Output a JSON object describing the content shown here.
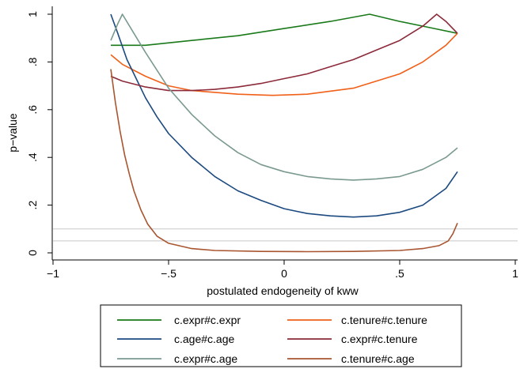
{
  "chart_data": {
    "type": "line",
    "title": "",
    "xlabel": "postulated endogeneity of kww",
    "ylabel": "p−value",
    "xlim": [
      -1,
      1
    ],
    "ylim": [
      0,
      1
    ],
    "x_ticks": [
      {
        "value": -1,
        "label": "−1"
      },
      {
        "value": -0.5,
        "label": "−.5"
      },
      {
        "value": 0,
        "label": "0"
      },
      {
        "value": 0.5,
        "label": ".5"
      },
      {
        "value": 1,
        "label": "1"
      }
    ],
    "y_ticks": [
      {
        "value": 0,
        "label": "0"
      },
      {
        "value": 0.2,
        "label": ".2"
      },
      {
        "value": 0.4,
        "label": ".4"
      },
      {
        "value": 0.6,
        "label": ".6"
      },
      {
        "value": 0.8,
        "label": ".8"
      },
      {
        "value": 1,
        "label": "1"
      }
    ],
    "reference_lines": [
      0.05,
      0.1
    ],
    "grid": false,
    "legend_position": "bottom",
    "series": [
      {
        "name": "c.expr#c.expr",
        "color": "#1a7a1a",
        "points": [
          [
            -0.75,
            0.87
          ],
          [
            -0.6,
            0.87
          ],
          [
            -0.4,
            0.89
          ],
          [
            -0.2,
            0.91
          ],
          [
            0,
            0.94
          ],
          [
            0.2,
            0.97
          ],
          [
            0.37,
            1.0
          ],
          [
            0.5,
            0.97
          ],
          [
            0.65,
            0.94
          ],
          [
            0.75,
            0.92
          ]
        ]
      },
      {
        "name": "c.tenure#c.tenure",
        "color": "#f06018",
        "points": [
          [
            -0.75,
            0.83
          ],
          [
            -0.7,
            0.79
          ],
          [
            -0.6,
            0.74
          ],
          [
            -0.5,
            0.7
          ],
          [
            -0.4,
            0.68
          ],
          [
            -0.2,
            0.665
          ],
          [
            -0.05,
            0.66
          ],
          [
            0.1,
            0.665
          ],
          [
            0.3,
            0.69
          ],
          [
            0.5,
            0.75
          ],
          [
            0.6,
            0.8
          ],
          [
            0.7,
            0.87
          ],
          [
            0.75,
            0.92
          ]
        ]
      },
      {
        "name": "c.age#c.age",
        "color": "#1c4a80",
        "points": [
          [
            -0.75,
            1.0
          ],
          [
            -0.72,
            0.92
          ],
          [
            -0.68,
            0.81
          ],
          [
            -0.64,
            0.73
          ],
          [
            -0.6,
            0.65
          ],
          [
            -0.55,
            0.57
          ],
          [
            -0.5,
            0.5
          ],
          [
            -0.4,
            0.4
          ],
          [
            -0.3,
            0.32
          ],
          [
            -0.2,
            0.26
          ],
          [
            -0.1,
            0.22
          ],
          [
            0,
            0.185
          ],
          [
            0.1,
            0.165
          ],
          [
            0.2,
            0.155
          ],
          [
            0.3,
            0.15
          ],
          [
            0.4,
            0.155
          ],
          [
            0.5,
            0.17
          ],
          [
            0.6,
            0.2
          ],
          [
            0.7,
            0.27
          ],
          [
            0.75,
            0.34
          ]
        ]
      },
      {
        "name": "c.expr#c.tenure",
        "color": "#8c2a3a",
        "points": [
          [
            -0.75,
            0.74
          ],
          [
            -0.7,
            0.72
          ],
          [
            -0.6,
            0.695
          ],
          [
            -0.5,
            0.68
          ],
          [
            -0.4,
            0.68
          ],
          [
            -0.3,
            0.685
          ],
          [
            -0.2,
            0.695
          ],
          [
            -0.1,
            0.71
          ],
          [
            0,
            0.73
          ],
          [
            0.1,
            0.75
          ],
          [
            0.2,
            0.78
          ],
          [
            0.3,
            0.81
          ],
          [
            0.4,
            0.85
          ],
          [
            0.5,
            0.89
          ],
          [
            0.6,
            0.95
          ],
          [
            0.66,
            1.0
          ],
          [
            0.7,
            0.97
          ],
          [
            0.75,
            0.92
          ]
        ]
      },
      {
        "name": "c.expr#c.age",
        "color": "#7a9a90",
        "points": [
          [
            -0.75,
            0.89
          ],
          [
            -0.72,
            0.96
          ],
          [
            -0.7,
            1.0
          ],
          [
            -0.65,
            0.92
          ],
          [
            -0.6,
            0.84
          ],
          [
            -0.5,
            0.69
          ],
          [
            -0.4,
            0.58
          ],
          [
            -0.3,
            0.49
          ],
          [
            -0.2,
            0.42
          ],
          [
            -0.1,
            0.37
          ],
          [
            0,
            0.34
          ],
          [
            0.1,
            0.32
          ],
          [
            0.2,
            0.31
          ],
          [
            0.3,
            0.305
          ],
          [
            0.4,
            0.31
          ],
          [
            0.5,
            0.32
          ],
          [
            0.6,
            0.35
          ],
          [
            0.7,
            0.4
          ],
          [
            0.75,
            0.44
          ]
        ]
      },
      {
        "name": "c.tenure#c.age",
        "color": "#a85530",
        "points": [
          [
            -0.75,
            0.77
          ],
          [
            -0.73,
            0.63
          ],
          [
            -0.71,
            0.51
          ],
          [
            -0.69,
            0.41
          ],
          [
            -0.67,
            0.33
          ],
          [
            -0.65,
            0.26
          ],
          [
            -0.62,
            0.18
          ],
          [
            -0.59,
            0.12
          ],
          [
            -0.55,
            0.07
          ],
          [
            -0.5,
            0.04
          ],
          [
            -0.4,
            0.018
          ],
          [
            -0.3,
            0.01
          ],
          [
            -0.1,
            0.006
          ],
          [
            0.1,
            0.005
          ],
          [
            0.3,
            0.006
          ],
          [
            0.5,
            0.01
          ],
          [
            0.6,
            0.018
          ],
          [
            0.67,
            0.03
          ],
          [
            0.71,
            0.05
          ],
          [
            0.73,
            0.08
          ],
          [
            0.75,
            0.125
          ]
        ]
      }
    ]
  }
}
